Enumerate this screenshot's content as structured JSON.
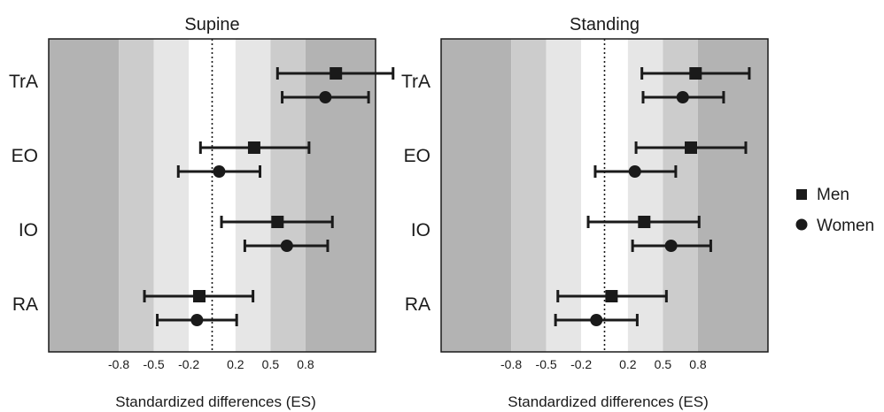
{
  "chart_data": [
    {
      "type": "scatter",
      "subtype": "forest-plot",
      "title": "Supine",
      "xlabel": "Standardized differences (ES)",
      "ylabel": "",
      "xlim": [
        -1.4,
        1.4
      ],
      "x_ticks": [
        -0.8,
        -0.5,
        -0.2,
        0.2,
        0.5,
        0.8
      ],
      "x_tick_labels": [
        "-0.8",
        "-0.5",
        "-0.2",
        "0.2",
        "0.5",
        "0.8"
      ],
      "reference_line": 0,
      "effect_bands": [
        0.2,
        0.5,
        0.8
      ],
      "band_colors": [
        "#ffffff",
        "#e6e6e6",
        "#cccccc",
        "#b3b3b3"
      ],
      "categories": [
        "TrA",
        "EO",
        "IO",
        "RA"
      ],
      "series": [
        {
          "name": "Men",
          "marker": "square",
          "values": [
            1.06,
            0.36,
            0.56,
            -0.11
          ],
          "ci_low": [
            0.56,
            -0.1,
            0.08,
            -0.58
          ],
          "ci_high": [
            1.55,
            0.83,
            1.03,
            0.35
          ]
        },
        {
          "name": "Women",
          "marker": "circle",
          "values": [
            0.97,
            0.06,
            0.64,
            -0.13
          ],
          "ci_low": [
            0.6,
            -0.29,
            0.28,
            -0.47
          ],
          "ci_high": [
            1.34,
            0.41,
            0.99,
            0.21
          ]
        }
      ]
    },
    {
      "type": "scatter",
      "subtype": "forest-plot",
      "title": "Standing",
      "xlabel": "Standardized differences (ES)",
      "ylabel": "",
      "xlim": [
        -1.4,
        1.4
      ],
      "x_ticks": [
        -0.8,
        -0.5,
        -0.2,
        0.2,
        0.5,
        0.8
      ],
      "x_tick_labels": [
        "-0.8",
        "-0.5",
        "-0.2",
        "0.2",
        "0.5",
        "0.8"
      ],
      "reference_line": 0,
      "effect_bands": [
        0.2,
        0.5,
        0.8
      ],
      "band_colors": [
        "#ffffff",
        "#e6e6e6",
        "#cccccc",
        "#b3b3b3"
      ],
      "categories": [
        "TrA",
        "EO",
        "IO",
        "RA"
      ],
      "series": [
        {
          "name": "Men",
          "marker": "square",
          "values": [
            0.78,
            0.74,
            0.34,
            0.06
          ],
          "ci_low": [
            0.32,
            0.27,
            -0.14,
            -0.4
          ],
          "ci_high": [
            1.24,
            1.21,
            0.81,
            0.53
          ]
        },
        {
          "name": "Women",
          "marker": "circle",
          "values": [
            0.67,
            0.26,
            0.57,
            -0.07
          ],
          "ci_low": [
            0.33,
            -0.08,
            0.24,
            -0.42
          ],
          "ci_high": [
            1.02,
            0.61,
            0.91,
            0.28
          ]
        }
      ]
    }
  ],
  "legend": {
    "items": [
      {
        "label": "Men",
        "marker": "square"
      },
      {
        "label": "Women",
        "marker": "circle"
      }
    ],
    "placement": "right"
  }
}
